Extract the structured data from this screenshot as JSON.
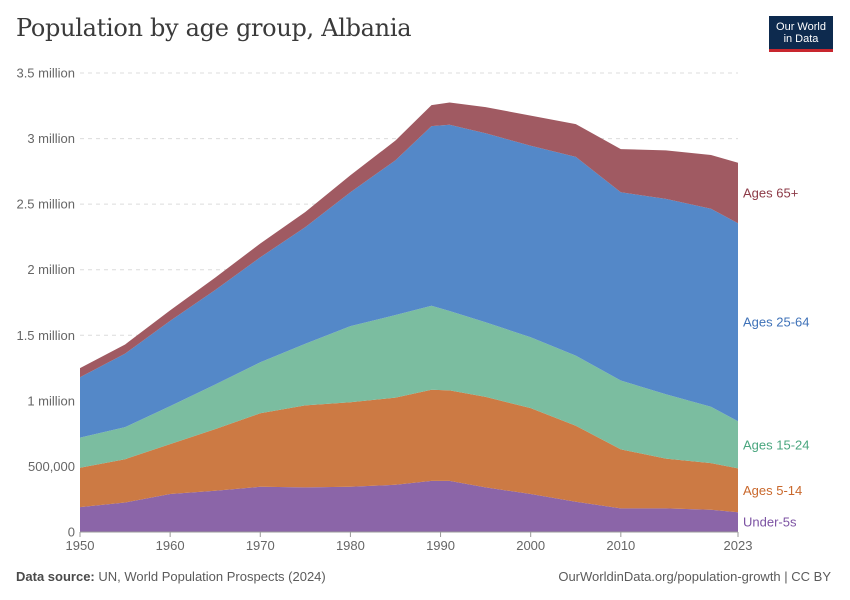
{
  "title": "Population by age group, Albania",
  "logo": {
    "line1": "Our World",
    "line2": "in Data"
  },
  "footer": {
    "source_label": "Data source:",
    "source_text": "UN, World Population Prospects (2024)",
    "url": "OurWorldinData.org/population-growth | CC BY"
  },
  "chart_data": {
    "type": "area",
    "stacked": true,
    "title": "Population by age group, Albania",
    "xlim": [
      1950,
      2023
    ],
    "ylim": [
      0,
      3500000
    ],
    "x_ticks": [
      1950,
      1960,
      1970,
      1980,
      1990,
      2000,
      2010,
      2023
    ],
    "y_ticks": [
      {
        "value": 0,
        "label": "0"
      },
      {
        "value": 500000,
        "label": "500,000"
      },
      {
        "value": 1000000,
        "label": "1 million"
      },
      {
        "value": 1500000,
        "label": "1.5 million"
      },
      {
        "value": 2000000,
        "label": "2 million"
      },
      {
        "value": 2500000,
        "label": "2.5 million"
      },
      {
        "value": 3000000,
        "label": "3 million"
      },
      {
        "value": 3500000,
        "label": "3.5 million"
      }
    ],
    "x": [
      1950,
      1955,
      1960,
      1965,
      1970,
      1975,
      1980,
      1985,
      1989,
      1991,
      1995,
      2000,
      2005,
      2010,
      2015,
      2020,
      2023
    ],
    "series": [
      {
        "name": "Under-5s",
        "color": "#8b65a8",
        "values": [
          190000,
          225000,
          290000,
          315000,
          345000,
          340000,
          345000,
          360000,
          390000,
          390000,
          340000,
          290000,
          230000,
          180000,
          180000,
          170000,
          150000
        ]
      },
      {
        "name": "Ages 5-14",
        "color": "#cc7a44",
        "values": [
          300000,
          330000,
          380000,
          470000,
          560000,
          625000,
          645000,
          665000,
          695000,
          690000,
          690000,
          655000,
          580000,
          450000,
          380000,
          355000,
          335000
        ]
      },
      {
        "name": "Ages 15-24",
        "color": "#7bbda0",
        "values": [
          230000,
          245000,
          290000,
          340000,
          390000,
          470000,
          580000,
          630000,
          640000,
          605000,
          570000,
          540000,
          535000,
          525000,
          490000,
          430000,
          360000
        ]
      },
      {
        "name": "Ages 25-64",
        "color": "#5488c8",
        "values": [
          460000,
          560000,
          650000,
          720000,
          800000,
          890000,
          1020000,
          1180000,
          1370000,
          1420000,
          1440000,
          1460000,
          1515000,
          1435000,
          1490000,
          1510000,
          1510000
        ]
      },
      {
        "name": "Ages 65+",
        "color": "#a05a62",
        "values": [
          70000,
          70000,
          80000,
          95000,
          105000,
          115000,
          130000,
          150000,
          160000,
          170000,
          200000,
          230000,
          250000,
          330000,
          370000,
          410000,
          460000
        ]
      }
    ],
    "legend": [
      {
        "name": "Ages 65+",
        "color": "#8c3a47"
      },
      {
        "name": "Ages 25-64",
        "color": "#3f72b8"
      },
      {
        "name": "Ages 15-24",
        "color": "#4aa67f"
      },
      {
        "name": "Ages 5-14",
        "color": "#c9682c"
      },
      {
        "name": "Under-5s",
        "color": "#7c52a3"
      }
    ]
  }
}
